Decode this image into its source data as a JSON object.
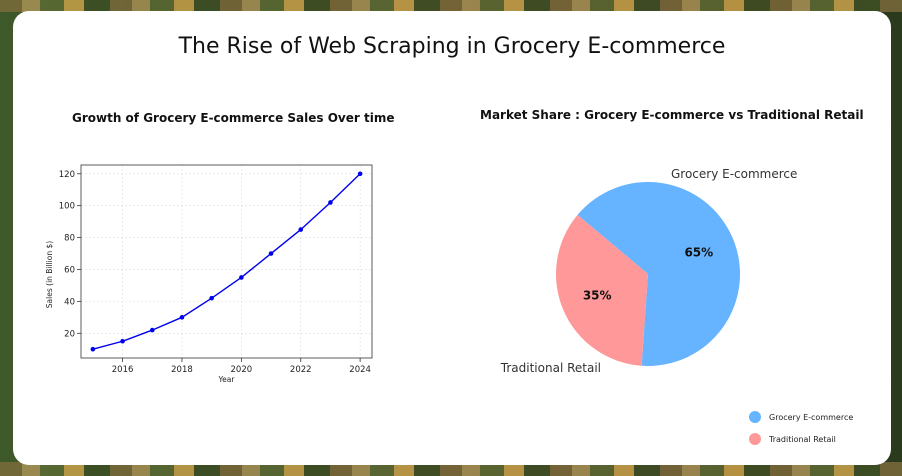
{
  "page": {
    "title": "The Rise of Web Scraping in Grocery E-commerce"
  },
  "chart_data": [
    {
      "type": "line",
      "title": "Growth of Grocery E-commerce Sales Over time",
      "xlabel": "Year",
      "ylabel": "Sales (in Billion $)",
      "x": [
        2015,
        2016,
        2017,
        2018,
        2019,
        2020,
        2021,
        2022,
        2023,
        2024
      ],
      "series": [
        {
          "values": [
            10,
            15,
            22,
            30,
            42,
            55,
            70,
            85,
            102,
            120
          ]
        }
      ],
      "xticks": [
        2016,
        2018,
        2020,
        2022,
        2024
      ],
      "yticks": [
        20,
        40,
        60,
        80,
        100,
        120
      ],
      "xlim": [
        2014.6,
        2024.4
      ],
      "ylim": [
        4.5,
        125.5
      ],
      "grid": true,
      "color": "#0000ee"
    },
    {
      "type": "pie",
      "title": "Market Share : Grocery E-commerce vs Traditional Retail",
      "labels": [
        "Grocery E-commerce",
        "Traditional Retail"
      ],
      "values": [
        65,
        35
      ],
      "value_labels": [
        "65%",
        "35%"
      ],
      "colors": [
        "#66b3ff",
        "#ff9999"
      ],
      "legend": "bottom-right"
    }
  ]
}
